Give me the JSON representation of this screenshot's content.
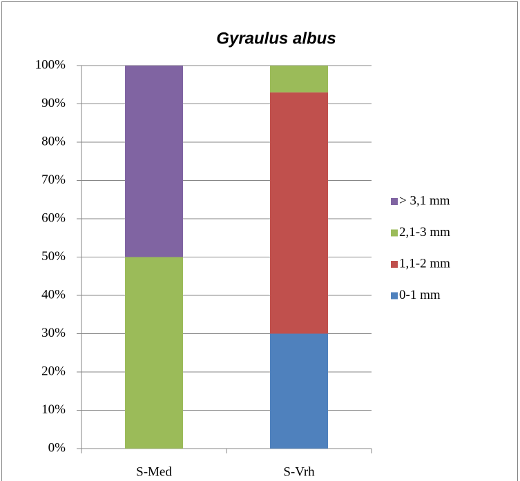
{
  "chart_data": {
    "type": "stacked_bar",
    "title": "Gyraulus albus",
    "categories": [
      "S-Med",
      "S-Vrh"
    ],
    "series": [
      {
        "name": "0-1 mm",
        "color": "#4f81bd",
        "values": [
          0,
          30
        ]
      },
      {
        "name": "1,1-2 mm",
        "color": "#c0504d",
        "values": [
          0,
          63
        ]
      },
      {
        "name": "2,1-3 mm",
        "color": "#9bbb59",
        "values": [
          50,
          7
        ]
      },
      {
        "name": "> 3,1 mm",
        "color": "#8064a2",
        "values": [
          50,
          0
        ]
      }
    ],
    "ylim": [
      0,
      100
    ],
    "yticks": [
      {
        "value": 0,
        "label": "0%"
      },
      {
        "value": 10,
        "label": "10%"
      },
      {
        "value": 20,
        "label": "20%"
      },
      {
        "value": 30,
        "label": "30%"
      },
      {
        "value": 40,
        "label": "40%"
      },
      {
        "value": 50,
        "label": "50%"
      },
      {
        "value": 60,
        "label": "60%"
      },
      {
        "value": 70,
        "label": "70%"
      },
      {
        "value": 80,
        "label": "80%"
      },
      {
        "value": 90,
        "label": "90%"
      },
      {
        "value": 100,
        "label": "100%"
      }
    ],
    "grid": true,
    "legend": "right"
  }
}
